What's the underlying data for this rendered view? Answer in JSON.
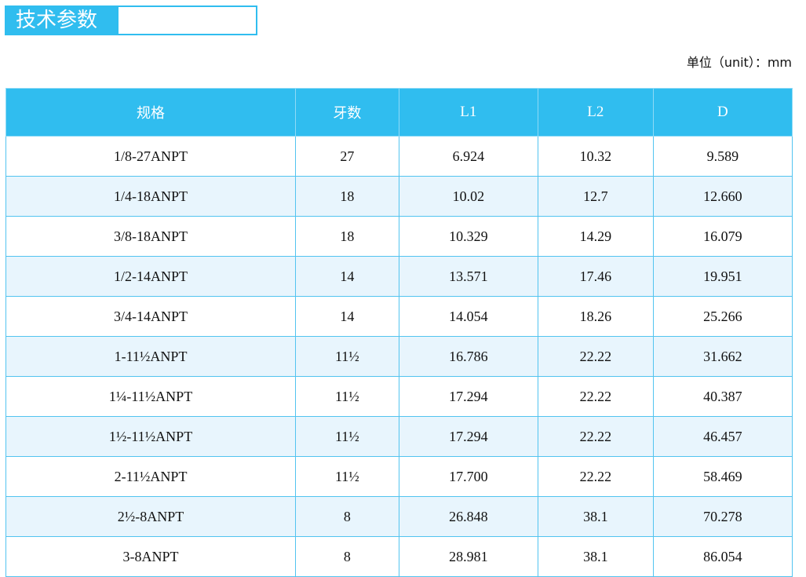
{
  "title": "技术参数",
  "unit": "单位（unit）：mm",
  "headers": [
    "规格",
    "牙数",
    "L1",
    "L2",
    "D"
  ],
  "rows": [
    [
      "1/8-27ANPT",
      "27",
      "6.924",
      "10.32",
      "9.589"
    ],
    [
      "1/4-18ANPT",
      "18",
      "10.02",
      "12.7",
      "12.660"
    ],
    [
      "3/8-18ANPT",
      "18",
      "10.329",
      "14.29",
      "16.079"
    ],
    [
      "1/2-14ANPT",
      "14",
      "13.571",
      "17.46",
      "19.951"
    ],
    [
      "3/4-14ANPT",
      "14",
      "14.054",
      "18.26",
      "25.266"
    ],
    [
      "1-11½ANPT",
      "11½",
      "16.786",
      "22.22",
      "31.662"
    ],
    [
      "1¼-11½ANPT",
      "11½",
      "17.294",
      "22.22",
      "40.387"
    ],
    [
      "1½-11½ANPT",
      "11½",
      "17.294",
      "22.22",
      "46.457"
    ],
    [
      "2-11½ANPT",
      "11½",
      "17.700",
      "22.22",
      "58.469"
    ],
    [
      "2½-8ANPT",
      "8",
      "26.848",
      "38.1",
      "70.278"
    ],
    [
      "3-8ANPT",
      "8",
      "28.981",
      "38.1",
      "86.054"
    ]
  ]
}
